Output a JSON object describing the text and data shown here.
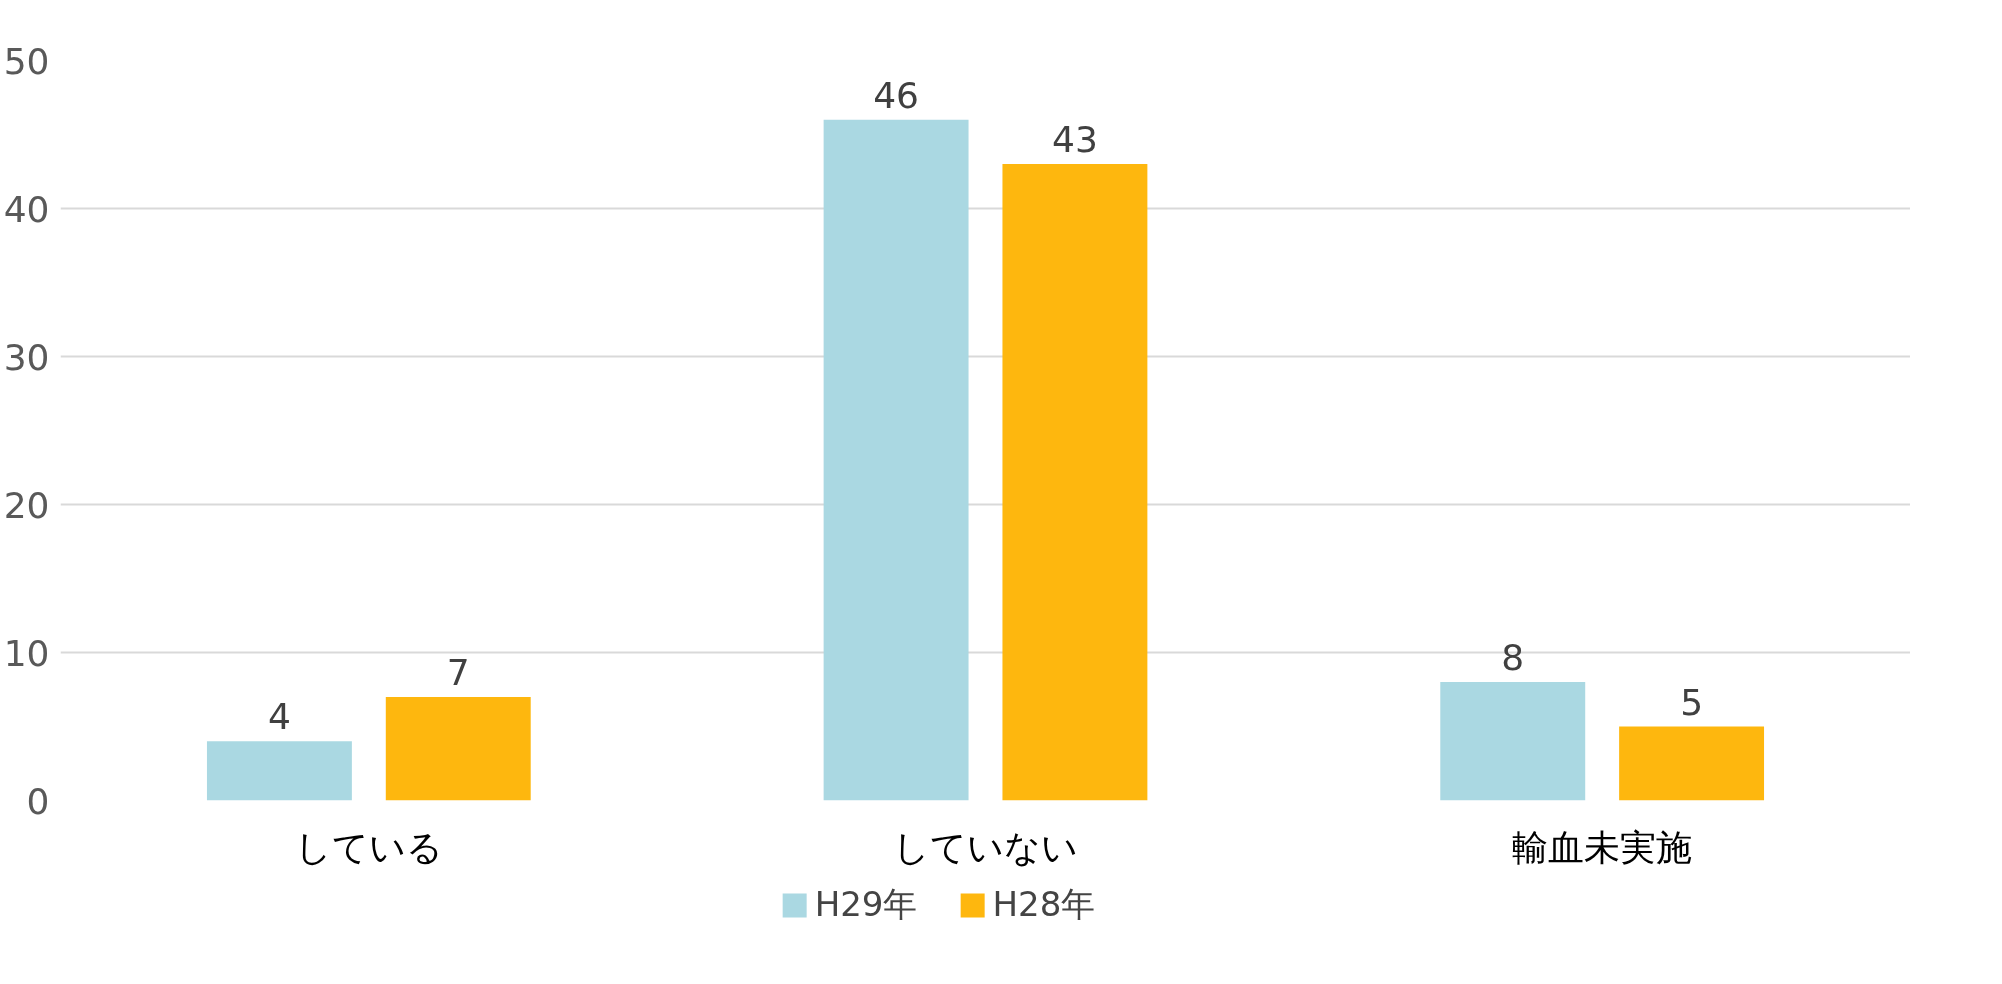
{
  "chart_data": {
    "type": "bar",
    "categories": [
      "している",
      "していない",
      "輸血未実施"
    ],
    "series": [
      {
        "name": "H29年",
        "color": "#aad8e2",
        "values": [
          4,
          46,
          8
        ]
      },
      {
        "name": "H28年",
        "color": "#feb70e",
        "values": [
          7,
          43,
          5
        ]
      }
    ],
    "ylim": [
      0,
      50
    ],
    "yticks": [
      0,
      10,
      20,
      30,
      40,
      50
    ],
    "grid": "y",
    "legend": "bottom",
    "data_labels": true
  }
}
